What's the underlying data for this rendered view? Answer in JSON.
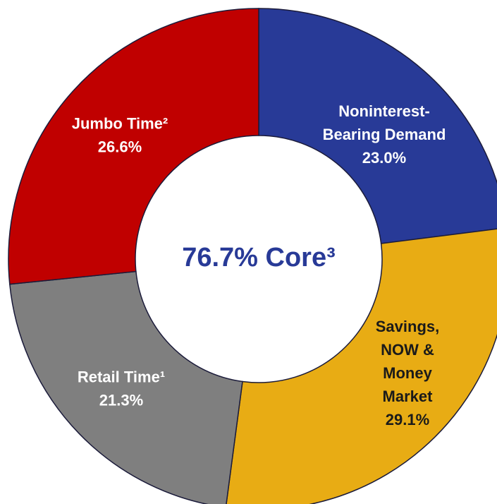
{
  "chart_data": {
    "type": "donut",
    "categories": [
      [
        "Noninterest-",
        "Bearing Demand"
      ],
      [
        "Savings,",
        "NOW &",
        "Money",
        "Market"
      ],
      [
        "Retail Time¹"
      ],
      [
        "Jumbo Time²"
      ]
    ],
    "values": [
      23.0,
      29.1,
      21.3,
      26.6
    ],
    "value_labels": [
      "23.0%",
      "29.1%",
      "21.3%",
      "26.6%"
    ],
    "colors": [
      "#283a97",
      "#e8ac14",
      "#7f7f7f",
      "#c00000"
    ],
    "label_colors": [
      "#ffffff",
      "#1a1a1a",
      "#ffffff",
      "#ffffff"
    ],
    "center_text": "76.7% Core³",
    "center_color": "#283a97"
  }
}
